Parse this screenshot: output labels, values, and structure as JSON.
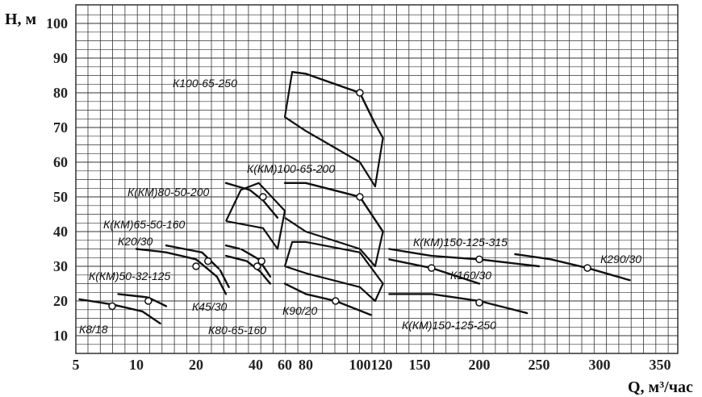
{
  "chart_data": {
    "type": "line",
    "title": "",
    "ylabel": "H, м",
    "xlabel": "Q, м³/час",
    "x_ticks": [
      "5",
      "10",
      "20",
      "40",
      "60",
      "80",
      "100",
      "120",
      "150",
      "200",
      "250",
      "300",
      "350"
    ],
    "y_ticks": [
      "10",
      "20",
      "30",
      "40",
      "50",
      "60",
      "70",
      "80",
      "90",
      "100"
    ],
    "ylim": [
      5,
      105
    ],
    "grid": true,
    "series": [
      {
        "name": "К8/18",
        "x": [
          5.3,
          8,
          11,
          14
        ],
        "y": [
          20.5,
          19,
          17,
          13.5
        ],
        "markers": [
          [
            8,
            18.5
          ]
        ]
      },
      {
        "name": "К(КМ)50-32-125",
        "x": [
          8.5,
          12,
          15
        ],
        "y": [
          22,
          21,
          18.5
        ],
        "markers": [
          [
            12,
            20
          ]
        ]
      },
      {
        "name": "К20/30",
        "x": [
          10,
          15,
          20,
          27,
          30
        ],
        "y": [
          35,
          34,
          32,
          27,
          22
        ],
        "markers": [
          [
            20,
            30
          ]
        ]
      },
      {
        "name": "К(КМ)65-50-160",
        "x": [
          15,
          22,
          28,
          31
        ],
        "y": [
          36,
          34,
          29,
          24
        ],
        "markers": [
          [
            24,
            31.5
          ]
        ]
      },
      {
        "name": "К45/30",
        "x": [
          30,
          35,
          42,
          50
        ],
        "y": [
          36,
          35,
          32,
          27
        ],
        "markers": [
          [
            44,
            31.5
          ]
        ]
      },
      {
        "name": "К80-65-160",
        "x": [
          30,
          37,
          43,
          50
        ],
        "y": [
          33,
          31.5,
          28.5,
          25
        ],
        "markers": [
          [
            41,
            30
          ]
        ]
      },
      {
        "name": "К(КМ)80-50-200",
        "x": [
          30,
          38,
          45,
          55
        ],
        "y": [
          54,
          52,
          49,
          44
        ],
        "markers": [
          [
            45,
            50
          ]
        ]
      },
      {
        "name": "К90/20",
        "x": [
          60,
          80,
          91,
          110
        ],
        "y": [
          25,
          22,
          20,
          16
        ],
        "markers": [
          [
            91,
            20
          ]
        ]
      },
      {
        "name": "К100-65-250",
        "x": [
          67,
          80,
          100,
          114
        ],
        "y": [
          86,
          85.5,
          80,
          71
        ],
        "markers": [
          [
            100,
            80
          ]
        ]
      },
      {
        "name": "К(КМ)100-65-200",
        "x": [
          60,
          80,
          100,
          121
        ],
        "y": [
          54,
          54,
          50,
          40
        ],
        "markers": [
          [
            100,
            50
          ]
        ]
      },
      {
        "name": "К(КМ)150-125-315",
        "x": [
          126,
          160,
          200,
          250
        ],
        "y": [
          35,
          33,
          32,
          30
        ],
        "markers": [
          [
            200,
            32
          ]
        ]
      },
      {
        "name": "К160/30",
        "x": [
          126,
          160,
          200
        ],
        "y": [
          32,
          29.5,
          25
        ],
        "markers": [
          [
            160,
            29.5
          ]
        ]
      },
      {
        "name": "К(КМ)150-125-250",
        "x": [
          126,
          160,
          200,
          240
        ],
        "y": [
          22,
          22,
          20,
          16.5
        ],
        "markers": [
          [
            200,
            19.5
          ]
        ]
      },
      {
        "name": "К290/30",
        "x": [
          230,
          260,
          290,
          325
        ],
        "y": [
          33.5,
          32,
          29.5,
          26
        ],
        "markers": [
          [
            290,
            29.5
          ]
        ]
      }
    ]
  }
}
